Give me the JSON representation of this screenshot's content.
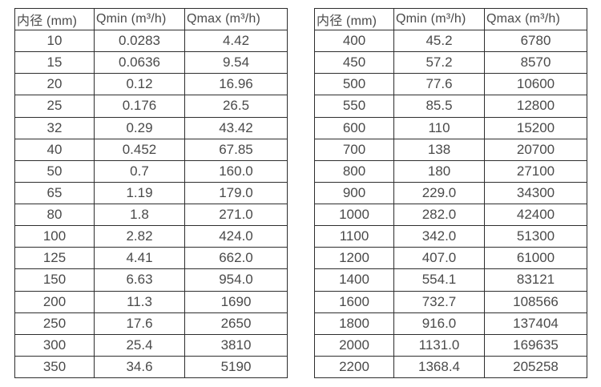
{
  "tables": [
    {
      "name": "small-diameter-table",
      "headers": [
        "内径 (mm)",
        "Qmin (m³/h)",
        "Qmax (m³/h)"
      ],
      "rows": [
        [
          "10",
          "0.0283",
          "4.42"
        ],
        [
          "15",
          "0.0636",
          "9.54"
        ],
        [
          "20",
          "0.12",
          "16.96"
        ],
        [
          "25",
          "0.176",
          "26.5"
        ],
        [
          "32",
          "0.29",
          "43.42"
        ],
        [
          "40",
          "0.452",
          "67.85"
        ],
        [
          "50",
          "0.7",
          "160.0"
        ],
        [
          "65",
          "1.19",
          "179.0"
        ],
        [
          "80",
          "1.8",
          "271.0"
        ],
        [
          "100",
          "2.82",
          "424.0"
        ],
        [
          "125",
          "4.41",
          "662.0"
        ],
        [
          "150",
          "6.63",
          "954.0"
        ],
        [
          "200",
          "11.3",
          "1690"
        ],
        [
          "250",
          "17.6",
          "2650"
        ],
        [
          "300",
          "25.4",
          "3810"
        ],
        [
          "350",
          "34.6",
          "5190"
        ]
      ]
    },
    {
      "name": "large-diameter-table",
      "headers": [
        "内径 (mm)",
        "Qmin (m³/h)",
        "Qmax (m³/h)"
      ],
      "rows": [
        [
          "400",
          "45.2",
          "6780"
        ],
        [
          "450",
          "57.2",
          "8570"
        ],
        [
          "500",
          "77.6",
          "10600"
        ],
        [
          "550",
          "85.5",
          "12800"
        ],
        [
          "600",
          "110",
          "15200"
        ],
        [
          "700",
          "138",
          "20700"
        ],
        [
          "800",
          "180",
          "27100"
        ],
        [
          "900",
          "229.0",
          "34300"
        ],
        [
          "1000",
          "282.0",
          "42400"
        ],
        [
          "1100",
          "342.0",
          "51300"
        ],
        [
          "1200",
          "407.0",
          "61000"
        ],
        [
          "1400",
          "554.1",
          "83121"
        ],
        [
          "1600",
          "732.7",
          "108566"
        ],
        [
          "1800",
          "916.0",
          "137404"
        ],
        [
          "2000",
          "1131.0",
          "169635"
        ],
        [
          "2200",
          "1368.4",
          "205258"
        ]
      ]
    }
  ],
  "colors": {
    "border": "#2e2e2e",
    "text": "#4a4a4a",
    "background": "#ffffff"
  }
}
